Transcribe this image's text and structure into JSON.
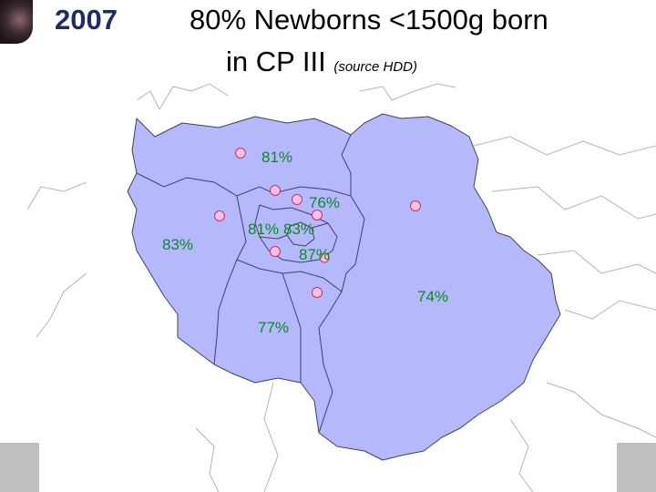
{
  "header": {
    "year": "2007",
    "title_line1": "80%  Newborns <1500g born",
    "title_line2": "in CP III",
    "title_source": "(source HDD)"
  },
  "map": {
    "region_fill": "#b5b8fb",
    "border_color": "#3f4266",
    "marker_fill": "#ffc0de",
    "marker_stroke": "#c0307a",
    "label_color": "#0b8a21",
    "labels": {
      "north": "81%",
      "paris_east": "76%",
      "west": "83%",
      "inner_a": "81%",
      "inner_b": "83%",
      "inner_c": "87%",
      "east": "74%",
      "south": "77%"
    }
  }
}
